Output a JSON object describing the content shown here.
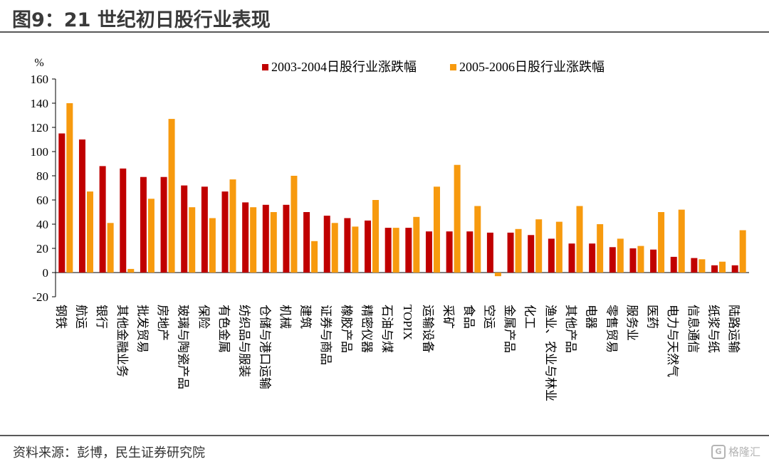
{
  "title": "图9：21 世纪初日股行业表现",
  "footer": {
    "source": "资料来源：彭博，民生证券研究院",
    "watermark": "格隆汇"
  },
  "colors": {
    "series_1": "#C00000",
    "series_2": "#F79A0E"
  },
  "chart_data": {
    "type": "bar",
    "ylabel": "%",
    "ylim": [
      -20,
      160
    ],
    "yticks": [
      -20,
      0,
      20,
      40,
      60,
      80,
      100,
      120,
      140,
      160
    ],
    "legend_position": "top",
    "categories": [
      "钢铁",
      "航运",
      "银行",
      "其他金融业务",
      "批发贸易",
      "房地产",
      "玻璃与陶瓷产品",
      "保险",
      "有色金属",
      "纺织品与服装",
      "仓储与港口运输",
      "机械",
      "建筑",
      "证券与商品",
      "橡胶产品",
      "精密仪器",
      "石油与煤",
      "TOPIX",
      "运输设备",
      "采矿",
      "食品",
      "空运",
      "金属产品",
      "化工",
      "渔业、农业与林业",
      "其他产品",
      "电器",
      "零售贸易",
      "服务业",
      "医药",
      "电力与天然气",
      "信息通信",
      "纸浆与纸",
      "陆路运输"
    ],
    "series": [
      {
        "name": "2003-2004日股行业涨跌幅",
        "values": [
          115,
          110,
          88,
          86,
          79,
          79,
          72,
          71,
          67,
          58,
          56,
          56,
          50,
          47,
          45,
          43,
          37,
          37,
          34,
          34,
          34,
          33,
          33,
          31,
          28,
          24,
          24,
          21,
          20,
          19,
          13,
          12,
          6,
          6
        ]
      },
      {
        "name": "2005-2006日股行业涨跌幅",
        "values": [
          140,
          67,
          41,
          3,
          61,
          127,
          54,
          45,
          77,
          54,
          50,
          80,
          26,
          41,
          38,
          60,
          37,
          46,
          71,
          89,
          55,
          -3,
          36,
          44,
          42,
          55,
          40,
          28,
          22,
          50,
          52,
          11,
          9,
          35
        ]
      }
    ]
  }
}
